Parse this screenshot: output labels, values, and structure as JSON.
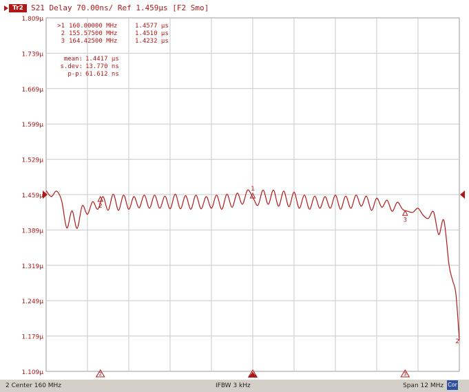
{
  "header": {
    "channel_badge": "Tr2",
    "title": "S21 Delay 70.00ns/ Ref 1.459µs [F2 Smo]"
  },
  "markers": [
    {
      "id": ">1",
      "freq": "160.00000 MHz",
      "value": "1.4577 µs"
    },
    {
      "id": "2",
      "freq": "155.57500 MHz",
      "value": "1.4510 µs"
    },
    {
      "id": "3",
      "freq": "164.42500 MHz",
      "value": "1.4232 µs"
    }
  ],
  "stats": [
    {
      "label": "mean:",
      "value": "1.4417 µs"
    },
    {
      "label": "s.dev:",
      "value": "13.770 ns"
    },
    {
      "label": "p-p:",
      "value": "61.612 ns"
    }
  ],
  "status_bar": {
    "left": "2  Center 160 MHz",
    "center": "IFBW 3 kHz",
    "right": "Span 12 MHz",
    "cor_button": "Cor"
  },
  "colors": {
    "trace": "#b01818",
    "grid": "#c8c8c8",
    "text": "#b01818",
    "status_bg": "#d4d0c8"
  },
  "chart_data": {
    "type": "line",
    "title": "S21 Delay 70.00ns/ Ref 1.459µs [F2 Smo]",
    "xlabel": "",
    "ylabel": "",
    "xlim": [
      154,
      166
    ],
    "ylim": [
      1.109,
      1.809
    ],
    "y_ticks": [
      "1.809µ",
      "1.739µ",
      "1.669µ",
      "1.599µ",
      "1.529µ",
      "1.459µ",
      "1.389µ",
      "1.319µ",
      "1.249µ",
      "1.179µ",
      "1.109µ"
    ],
    "y_tick_values": [
      1.809,
      1.739,
      1.669,
      1.599,
      1.529,
      1.459,
      1.389,
      1.319,
      1.249,
      1.179,
      1.109
    ],
    "grid": true,
    "reference_value": 1.459,
    "trace_label": "2",
    "x": [
      154.0,
      154.15,
      154.3,
      154.45,
      154.6,
      154.75,
      154.9,
      155.05,
      155.2,
      155.35,
      155.5,
      155.65,
      155.8,
      155.95,
      156.1,
      156.25,
      156.4,
      156.55,
      156.7,
      156.85,
      157.0,
      157.15,
      157.3,
      157.45,
      157.6,
      157.75,
      157.9,
      158.05,
      158.2,
      158.35,
      158.5,
      158.65,
      158.8,
      158.95,
      159.1,
      159.25,
      159.4,
      159.55,
      159.7,
      159.85,
      160.0,
      160.15,
      160.3,
      160.45,
      160.6,
      160.75,
      160.9,
      161.05,
      161.2,
      161.35,
      161.5,
      161.65,
      161.8,
      161.95,
      162.1,
      162.25,
      162.4,
      162.55,
      162.7,
      162.85,
      163.0,
      163.15,
      163.3,
      163.45,
      163.6,
      163.75,
      163.9,
      164.05,
      164.2,
      164.35,
      164.5,
      164.65,
      164.8,
      164.95,
      165.1,
      165.25,
      165.4,
      165.55,
      165.7,
      165.8,
      165.9,
      166.0
    ],
    "values": [
      1.467,
      1.455,
      1.466,
      1.447,
      1.393,
      1.427,
      1.392,
      1.437,
      1.42,
      1.445,
      1.43,
      1.455,
      1.428,
      1.46,
      1.428,
      1.458,
      1.43,
      1.455,
      1.433,
      1.458,
      1.432,
      1.458,
      1.432,
      1.456,
      1.431,
      1.46,
      1.431,
      1.457,
      1.43,
      1.458,
      1.431,
      1.455,
      1.432,
      1.458,
      1.43,
      1.46,
      1.434,
      1.462,
      1.44,
      1.468,
      1.454,
      1.438,
      1.468,
      1.44,
      1.468,
      1.436,
      1.466,
      1.435,
      1.464,
      1.432,
      1.458,
      1.43,
      1.456,
      1.432,
      1.455,
      1.432,
      1.458,
      1.43,
      1.456,
      1.432,
      1.458,
      1.436,
      1.456,
      1.428,
      1.452,
      1.434,
      1.448,
      1.426,
      1.444,
      1.43,
      1.426,
      1.424,
      1.432,
      1.418,
      1.412,
      1.425,
      1.38,
      1.408,
      1.32,
      1.29,
      1.262,
      1.17
    ],
    "marker_points": [
      {
        "label": "1",
        "x": 160.0,
        "y": 1.4577
      },
      {
        "label": "2",
        "x": 155.575,
        "y": 1.451
      },
      {
        "label": "3",
        "x": 164.425,
        "y": 1.4232
      }
    ]
  }
}
